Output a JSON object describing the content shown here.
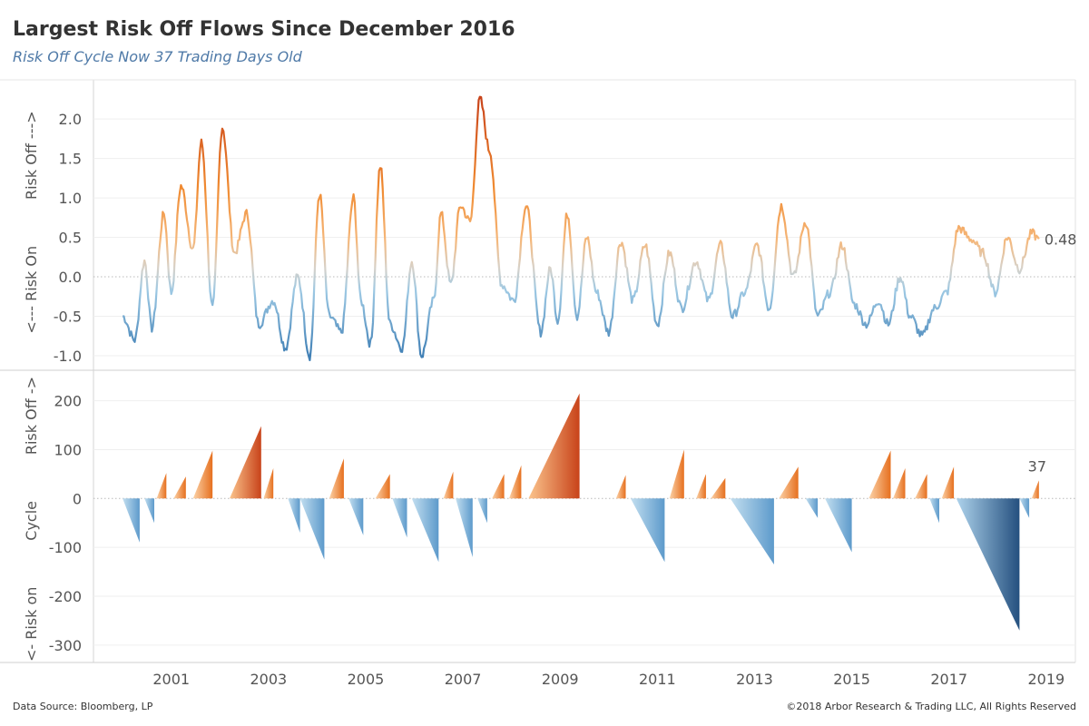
{
  "header": {
    "title": "Largest Risk Off Flows Since December 2016",
    "subtitle": "Risk Off Cycle Now 37 Trading Days Old"
  },
  "footer": {
    "source": "Data Source: Bloomberg, LP",
    "copyright": "©2018 Arbor Research & Trading LLC,  All Rights Reserved"
  },
  "colors": {
    "risk_off_strong": "#c8431a",
    "risk_off": "#f5a04f",
    "neutral": "#d9d4cc",
    "risk_on": "#8cc0de",
    "risk_on_strong": "#2b5a8a"
  },
  "chart_data": [
    {
      "type": "line",
      "ylabel": "<--- Risk On          Risk Off --->",
      "ylim": [
        -1.15,
        2.45
      ],
      "yticks": [
        "2.0",
        "1.5",
        "1.0",
        "0.5",
        "0.0",
        "-0.5",
        "-1.0"
      ],
      "ytick_values": [
        2.0,
        1.5,
        1.0,
        0.5,
        0.0,
        -0.5,
        -1.0
      ],
      "x_range": [
        1999.4,
        2019.6
      ],
      "last_value_label": "0.48",
      "x": [
        2000.0,
        2000.25,
        2000.45,
        2000.6,
        2000.85,
        2001.0,
        2001.2,
        2001.45,
        2001.62,
        2001.85,
        2002.05,
        2002.3,
        2002.55,
        2002.8,
        2003.1,
        2003.35,
        2003.6,
        2003.85,
        2004.05,
        2004.25,
        2004.5,
        2004.75,
        2004.9,
        2005.1,
        2005.3,
        2005.5,
        2005.75,
        2005.95,
        2006.15,
        2006.4,
        2006.55,
        2006.75,
        2006.95,
        2007.15,
        2007.35,
        2007.55,
        2007.8,
        2008.05,
        2008.3,
        2008.6,
        2008.8,
        2008.95,
        2009.15,
        2009.35,
        2009.55,
        2009.75,
        2010.0,
        2010.25,
        2010.5,
        2010.75,
        2011.0,
        2011.25,
        2011.5,
        2011.8,
        2012.05,
        2012.3,
        2012.55,
        2012.8,
        2013.05,
        2013.3,
        2013.55,
        2013.8,
        2014.05,
        2014.3,
        2014.55,
        2014.8,
        2015.05,
        2015.3,
        2015.55,
        2015.75,
        2016.0,
        2016.2,
        2016.45,
        2016.7,
        2016.95,
        2017.2,
        2017.45,
        2017.7,
        2017.95,
        2018.2,
        2018.45,
        2018.7,
        2018.85
      ],
      "values": [
        -0.5,
        -0.8,
        0.2,
        -0.65,
        0.8,
        -0.2,
        1.15,
        0.35,
        1.7,
        -0.4,
        1.9,
        0.3,
        0.8,
        -0.6,
        -0.3,
        -0.9,
        0.0,
        -1.0,
        1.05,
        -0.5,
        -0.7,
        1.0,
        -0.3,
        -0.85,
        1.4,
        -0.6,
        -0.9,
        0.2,
        -1.0,
        -0.3,
        0.8,
        -0.1,
        0.9,
        0.7,
        2.25,
        1.6,
        -0.1,
        -0.3,
        0.9,
        -0.7,
        0.1,
        -0.55,
        0.8,
        -0.5,
        0.5,
        -0.2,
        -0.7,
        0.45,
        -0.3,
        0.4,
        -0.6,
        0.3,
        -0.4,
        0.2,
        -0.3,
        0.4,
        -0.5,
        -0.2,
        0.4,
        -0.4,
        0.9,
        0.0,
        0.7,
        -0.5,
        -0.2,
        0.4,
        -0.35,
        -0.6,
        -0.3,
        -0.6,
        0.0,
        -0.5,
        -0.75,
        -0.4,
        -0.2,
        0.62,
        0.48,
        0.3,
        -0.2,
        0.5,
        0.1,
        0.55,
        0.48
      ]
    },
    {
      "type": "area",
      "ylabel": "<- Risk on          Cycle          Risk Off ->",
      "ylim": [
        -330,
        255
      ],
      "yticks": [
        "200",
        "100",
        "0",
        "-100",
        "-200",
        "-300"
      ],
      "ytick_values": [
        200,
        100,
        0,
        -100,
        -200,
        -300
      ],
      "x_range": [
        1999.4,
        2019.6
      ],
      "xticks": [
        "2001",
        "2003",
        "2005",
        "2007",
        "2009",
        "2011",
        "2013",
        "2015",
        "2017",
        "2019"
      ],
      "xtick_values": [
        2001,
        2003,
        2005,
        2007,
        2009,
        2011,
        2013,
        2015,
        2017,
        2019
      ],
      "last_value_label": "37",
      "cycles": [
        {
          "start": 2000.0,
          "end": 2000.35,
          "peak": -90
        },
        {
          "start": 2000.45,
          "end": 2000.65,
          "peak": -50
        },
        {
          "start": 2000.7,
          "end": 2000.9,
          "peak": 52
        },
        {
          "start": 2001.05,
          "end": 2001.3,
          "peak": 45
        },
        {
          "start": 2001.45,
          "end": 2001.85,
          "peak": 98
        },
        {
          "start": 2002.2,
          "end": 2002.85,
          "peak": 148
        },
        {
          "start": 2002.9,
          "end": 2003.1,
          "peak": 62
        },
        {
          "start": 2003.4,
          "end": 2003.65,
          "peak": -70
        },
        {
          "start": 2003.65,
          "end": 2004.15,
          "peak": -125
        },
        {
          "start": 2004.25,
          "end": 2004.55,
          "peak": 82
        },
        {
          "start": 2004.65,
          "end": 2004.95,
          "peak": -75
        },
        {
          "start": 2005.2,
          "end": 2005.5,
          "peak": 50
        },
        {
          "start": 2005.55,
          "end": 2005.85,
          "peak": -80
        },
        {
          "start": 2005.95,
          "end": 2006.5,
          "peak": -130
        },
        {
          "start": 2006.6,
          "end": 2006.8,
          "peak": 55
        },
        {
          "start": 2006.85,
          "end": 2007.2,
          "peak": -120
        },
        {
          "start": 2007.3,
          "end": 2007.5,
          "peak": -50
        },
        {
          "start": 2007.6,
          "end": 2007.85,
          "peak": 50
        },
        {
          "start": 2007.95,
          "end": 2008.2,
          "peak": 68
        },
        {
          "start": 2008.35,
          "end": 2009.4,
          "peak": 215
        },
        {
          "start": 2010.15,
          "end": 2010.35,
          "peak": 48
        },
        {
          "start": 2010.45,
          "end": 2011.15,
          "peak": -130
        },
        {
          "start": 2011.25,
          "end": 2011.55,
          "peak": 100
        },
        {
          "start": 2011.8,
          "end": 2012.0,
          "peak": 50
        },
        {
          "start": 2012.1,
          "end": 2012.4,
          "peak": 42
        },
        {
          "start": 2012.5,
          "end": 2013.4,
          "peak": -135
        },
        {
          "start": 2013.5,
          "end": 2013.9,
          "peak": 65
        },
        {
          "start": 2014.05,
          "end": 2014.3,
          "peak": -40
        },
        {
          "start": 2014.45,
          "end": 2015.0,
          "peak": -110
        },
        {
          "start": 2015.35,
          "end": 2015.8,
          "peak": 98
        },
        {
          "start": 2015.85,
          "end": 2016.1,
          "peak": 62
        },
        {
          "start": 2016.3,
          "end": 2016.55,
          "peak": 50
        },
        {
          "start": 2016.6,
          "end": 2016.8,
          "peak": -50
        },
        {
          "start": 2016.85,
          "end": 2017.1,
          "peak": 65
        },
        {
          "start": 2017.15,
          "end": 2018.45,
          "peak": -270
        },
        {
          "start": 2018.45,
          "end": 2018.65,
          "peak": -40
        },
        {
          "start": 2018.7,
          "end": 2018.85,
          "peak": 37
        }
      ]
    }
  ]
}
